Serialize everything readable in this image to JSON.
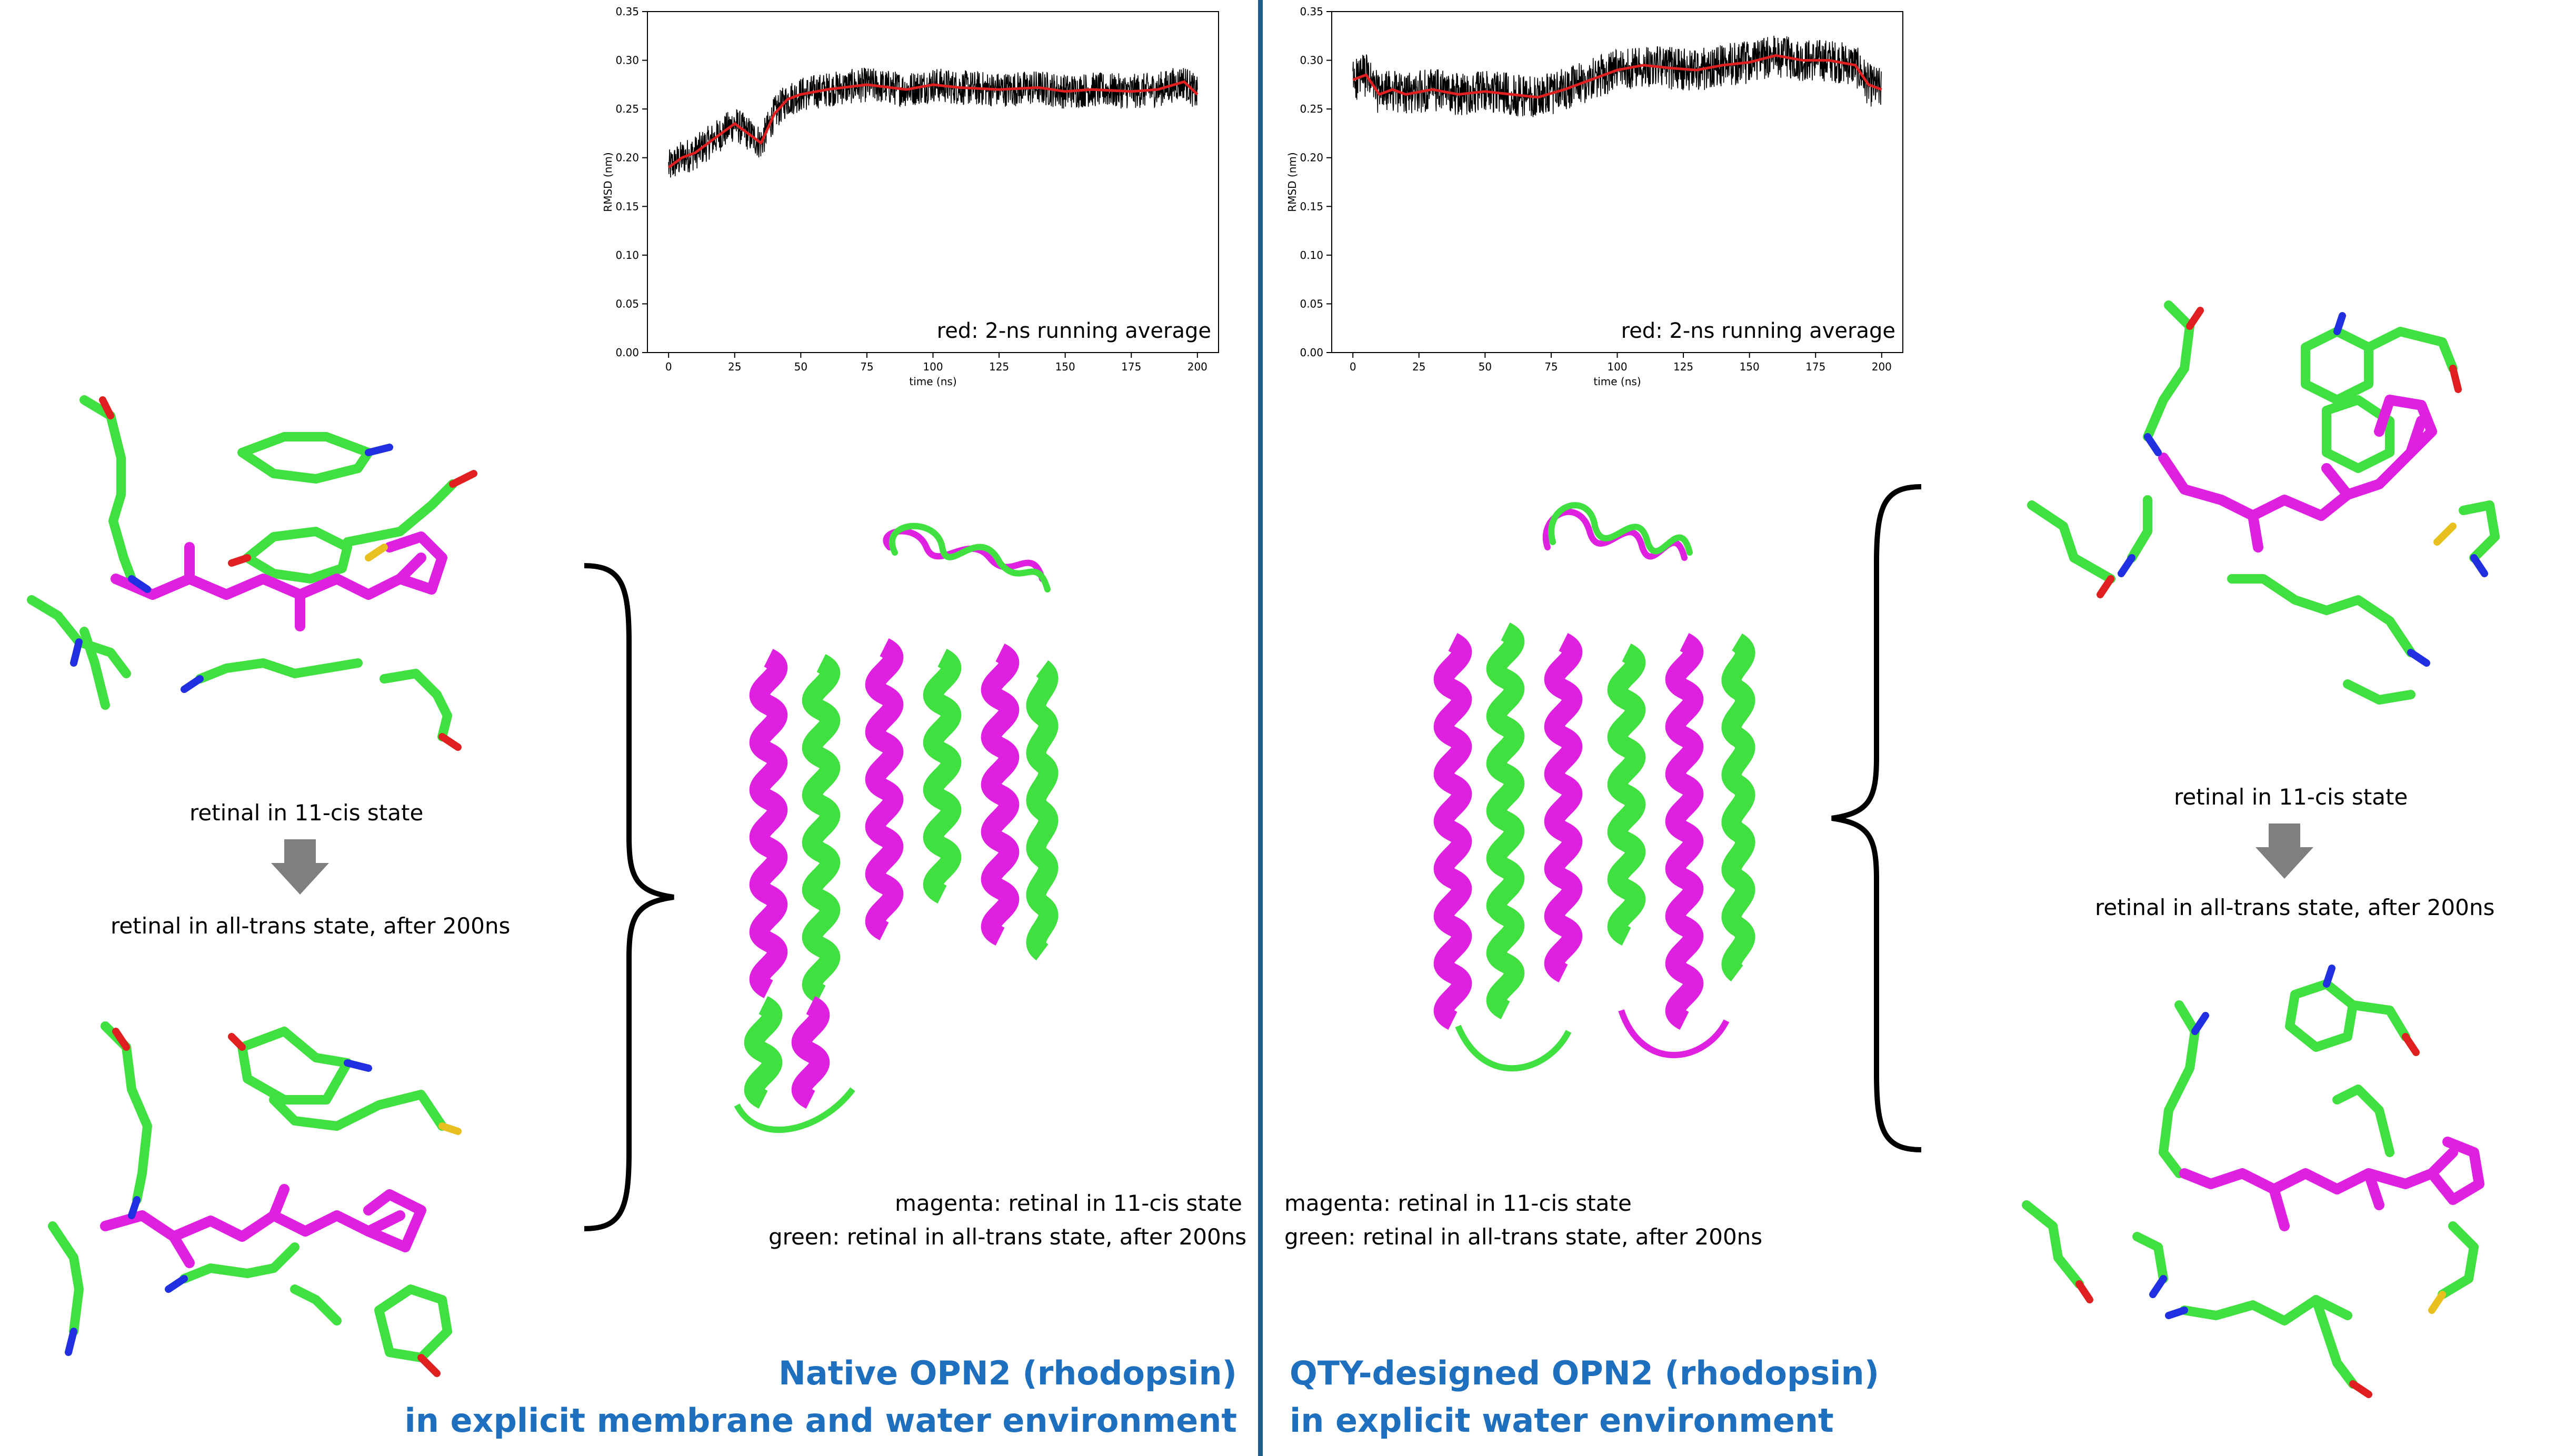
{
  "colors": {
    "accent_blue": "#1f6fbf",
    "divider": "#1f5f8b",
    "magenta": "#e020e0",
    "green": "#40e040",
    "raw_trace": "#000000",
    "running_avg": "#e02020",
    "arrow_gray": "#7f7f7f"
  },
  "chart_data": [
    {
      "type": "line",
      "xlabel": "time (ns)",
      "ylabel": "RMSD (nm)",
      "xlim": [
        -8,
        208
      ],
      "ylim": [
        0,
        0.35
      ],
      "xticks": [
        0,
        25,
        50,
        75,
        100,
        125,
        150,
        175,
        200
      ],
      "yticks": [
        "0.00",
        "0.05",
        "0.10",
        "0.15",
        "0.20",
        "0.25",
        "0.30",
        "0.35"
      ],
      "annotation": "red: 2-ns running average",
      "noise": 0.018,
      "series": [
        {
          "x": [
            0,
            5,
            10,
            15,
            20,
            25,
            30,
            35,
            40,
            45,
            50,
            60,
            75,
            90,
            100,
            110,
            125,
            140,
            150,
            160,
            175,
            185,
            195,
            200
          ],
          "y": [
            0.19,
            0.2,
            0.205,
            0.215,
            0.225,
            0.235,
            0.225,
            0.215,
            0.245,
            0.26,
            0.265,
            0.27,
            0.275,
            0.27,
            0.275,
            0.272,
            0.27,
            0.272,
            0.268,
            0.27,
            0.268,
            0.27,
            0.278,
            0.265
          ],
          "color": "#e02020"
        }
      ]
    },
    {
      "type": "line",
      "xlabel": "time (ns)",
      "ylabel": "RMSD (nm)",
      "xlim": [
        -8,
        208
      ],
      "ylim": [
        0,
        0.35
      ],
      "xticks": [
        0,
        25,
        50,
        75,
        100,
        125,
        150,
        175,
        200
      ],
      "yticks": [
        "0.00",
        "0.05",
        "0.10",
        "0.15",
        "0.20",
        "0.25",
        "0.30",
        "0.35"
      ],
      "annotation": "red: 2-ns running average",
      "noise": 0.022,
      "series": [
        {
          "x": [
            0,
            5,
            10,
            15,
            20,
            30,
            40,
            50,
            60,
            70,
            80,
            90,
            100,
            110,
            120,
            130,
            140,
            150,
            160,
            170,
            180,
            190,
            195,
            200
          ],
          "y": [
            0.28,
            0.285,
            0.265,
            0.27,
            0.265,
            0.27,
            0.265,
            0.268,
            0.265,
            0.262,
            0.27,
            0.28,
            0.29,
            0.295,
            0.292,
            0.29,
            0.295,
            0.298,
            0.305,
            0.3,
            0.3,
            0.295,
            0.275,
            0.27
          ],
          "color": "#e02020"
        }
      ]
    }
  ],
  "left": {
    "state_before": "retinal in 11-cis state",
    "state_after": "retinal in all-trans state, after 200ns",
    "legend_magenta": "magenta: retinal in 11-cis state",
    "legend_green": "green: retinal in all-trans state, after 200ns",
    "title_line1": "Native OPN2 (rhodopsin)",
    "title_line2": "in explicit membrane and water environment"
  },
  "right": {
    "state_before": "retinal in 11-cis state",
    "state_after": "retinal in all-trans state, after 200ns",
    "legend_magenta": "magenta: retinal in 11-cis state",
    "legend_green": "green: retinal in all-trans state, after 200ns",
    "title_line1": "QTY-designed OPN2 (rhodopsin)",
    "title_line2": "in explicit water environment"
  }
}
